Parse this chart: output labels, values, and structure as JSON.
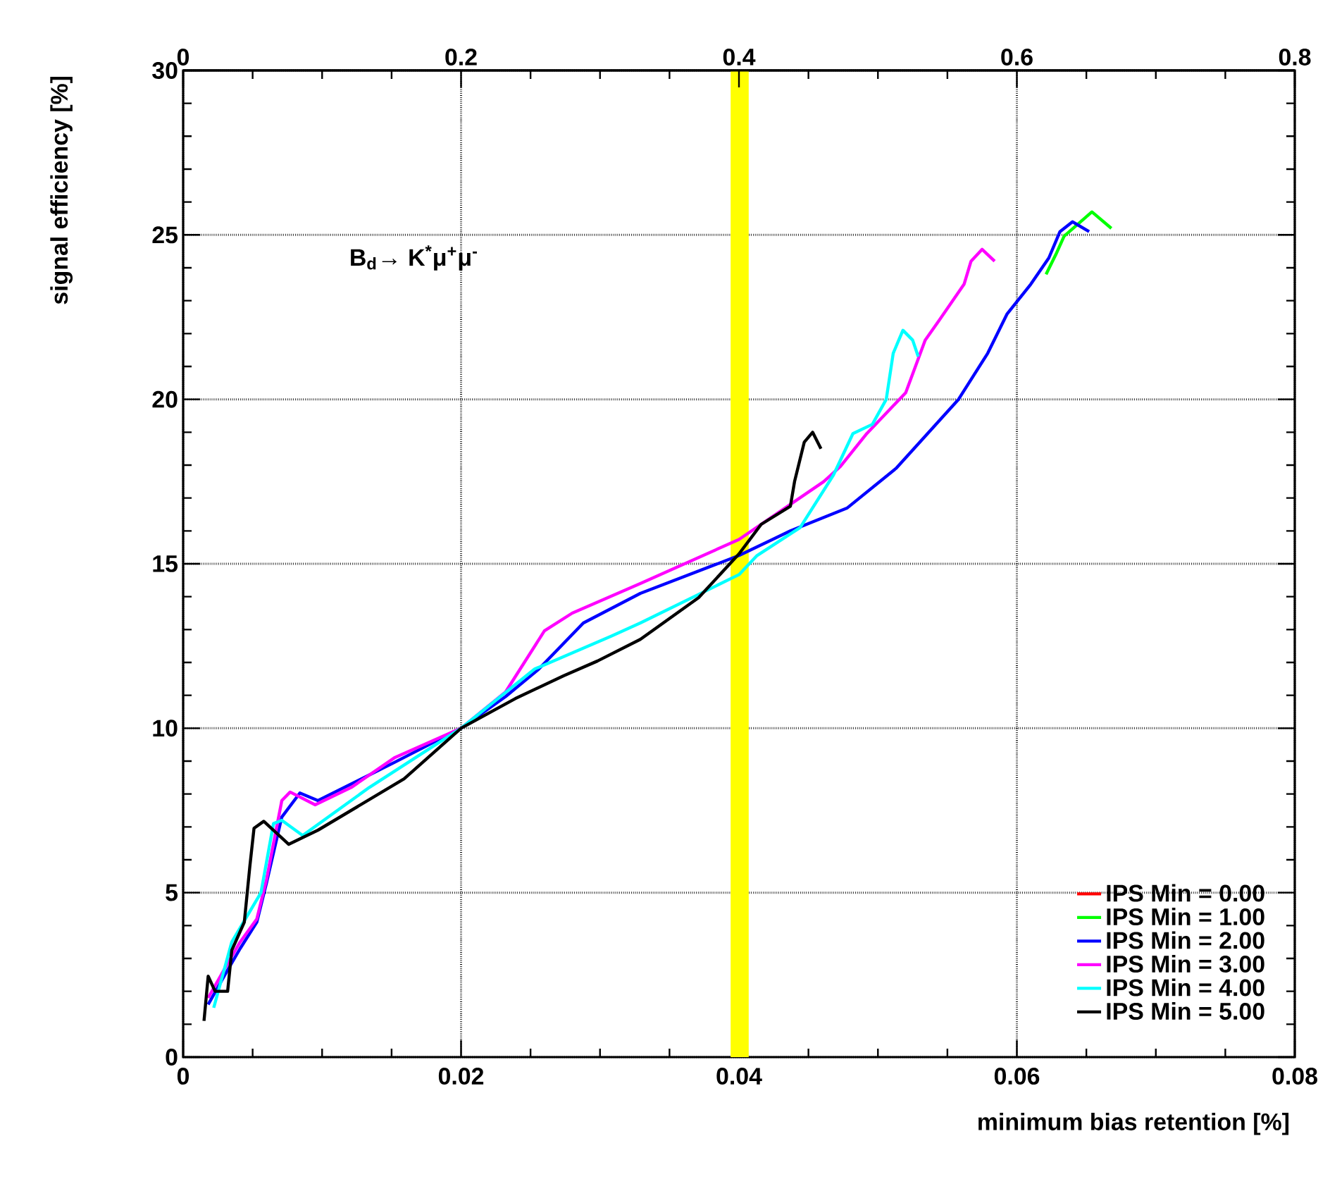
{
  "chart_data": {
    "type": "line",
    "xlabel": "minimum bias retention [%]",
    "ylabel": "signal efficiency [%]",
    "annotations": [
      "B$_{d}$→ K$^{*}$μ$^{+}$μ$^{-}$"
    ],
    "xlim": [
      0,
      0.08
    ],
    "xticks": [
      0,
      0.02,
      0.04,
      0.06,
      0.08
    ],
    "x2lim": [
      0,
      0.8
    ],
    "x2ticks": [
      0,
      0.2,
      0.4,
      0.6,
      0.8
    ],
    "ylim": [
      0,
      30
    ],
    "yticks": [
      0,
      5,
      10,
      15,
      20,
      25,
      30
    ],
    "grid": true,
    "legend": "bottom right",
    "line_style": "solid",
    "bands": [
      {
        "axis": "x",
        "from": 0.0394,
        "to": 0.0407,
        "color": "#ffff00"
      }
    ],
    "series": [
      {
        "name": "IPS Min = 0.00",
        "color": "#ff0000"
      },
      {
        "name": "IPS Min = 1.00",
        "color": "#00ff00",
        "x": [
          0.0621,
          0.0628,
          0.0634,
          0.0654,
          0.0668
        ],
        "values": [
          23.8,
          24.4,
          24.96,
          25.7,
          25.2
        ]
      },
      {
        "name": "IPS Min = 2.00",
        "color": "#0000ff",
        "x": [
          0.0018,
          0.003,
          0.0041,
          0.0053,
          0.006,
          0.0071,
          0.0084,
          0.0097,
          0.0152,
          0.02,
          0.0232,
          0.0256,
          0.0288,
          0.0329,
          0.04,
          0.0437,
          0.0478,
          0.0513,
          0.0558,
          0.0579,
          0.0593,
          0.061,
          0.0623,
          0.0631,
          0.064,
          0.0652
        ],
        "values": [
          1.6,
          2.5,
          3.3,
          4.1,
          5.3,
          7.3,
          8.03,
          7.8,
          8.96,
          10,
          10.96,
          11.8,
          13.2,
          14.1,
          15.25,
          16.0,
          16.7,
          17.9,
          20.0,
          21.4,
          22.6,
          23.5,
          24.3,
          25.1,
          25.4,
          25.1
        ]
      },
      {
        "name": "IPS Min = 3.00",
        "color": "#ff00ff",
        "x": [
          0.0018,
          0.003,
          0.0041,
          0.0053,
          0.006,
          0.0071,
          0.0077,
          0.0095,
          0.0121,
          0.0152,
          0.02,
          0.0232,
          0.026,
          0.028,
          0.0329,
          0.04,
          0.0461,
          0.0473,
          0.0492,
          0.052,
          0.0534,
          0.0544,
          0.0562,
          0.0567,
          0.0575,
          0.0584
        ],
        "values": [
          1.8,
          2.7,
          3.5,
          4.2,
          5.4,
          7.8,
          8.06,
          7.67,
          8.2,
          9.1,
          10,
          11.1,
          12.96,
          13.5,
          14.4,
          15.74,
          17.5,
          17.96,
          18.96,
          20.2,
          21.8,
          22.4,
          23.5,
          24.2,
          24.56,
          24.2
        ]
      },
      {
        "name": "IPS Min = 4.00",
        "color": "#00ffff",
        "x": [
          0.0022,
          0.0035,
          0.0056,
          0.0065,
          0.0071,
          0.0086,
          0.0134,
          0.02,
          0.0253,
          0.0308,
          0.0329,
          0.04,
          0.0413,
          0.0444,
          0.0468,
          0.0482,
          0.0496,
          0.0506,
          0.0511,
          0.0518,
          0.0525,
          0.0529
        ],
        "values": [
          1.5,
          3.5,
          5.0,
          7.1,
          7.2,
          6.74,
          8.2,
          10,
          11.8,
          12.8,
          13.2,
          14.67,
          15.25,
          16.1,
          17.7,
          18.96,
          19.24,
          20.0,
          21.4,
          22.1,
          21.8,
          21.3
        ]
      },
      {
        "name": "IPS Min = 5.00",
        "color": "#000000",
        "x": [
          0.0015,
          0.0018,
          0.0023,
          0.0032,
          0.0035,
          0.0044,
          0.0048,
          0.0051,
          0.0058,
          0.0076,
          0.0097,
          0.0159,
          0.02,
          0.0239,
          0.0274,
          0.0298,
          0.0329,
          0.0371,
          0.04,
          0.0416,
          0.0437,
          0.044,
          0.0447,
          0.0453,
          0.0459
        ],
        "values": [
          1.1,
          2.46,
          2.0,
          2.0,
          3.25,
          4.1,
          5.8,
          6.96,
          7.17,
          6.47,
          6.9,
          8.46,
          10,
          10.9,
          11.6,
          12.04,
          12.7,
          13.97,
          15.3,
          16.2,
          16.75,
          17.5,
          18.7,
          19.0,
          18.5
        ]
      }
    ]
  }
}
